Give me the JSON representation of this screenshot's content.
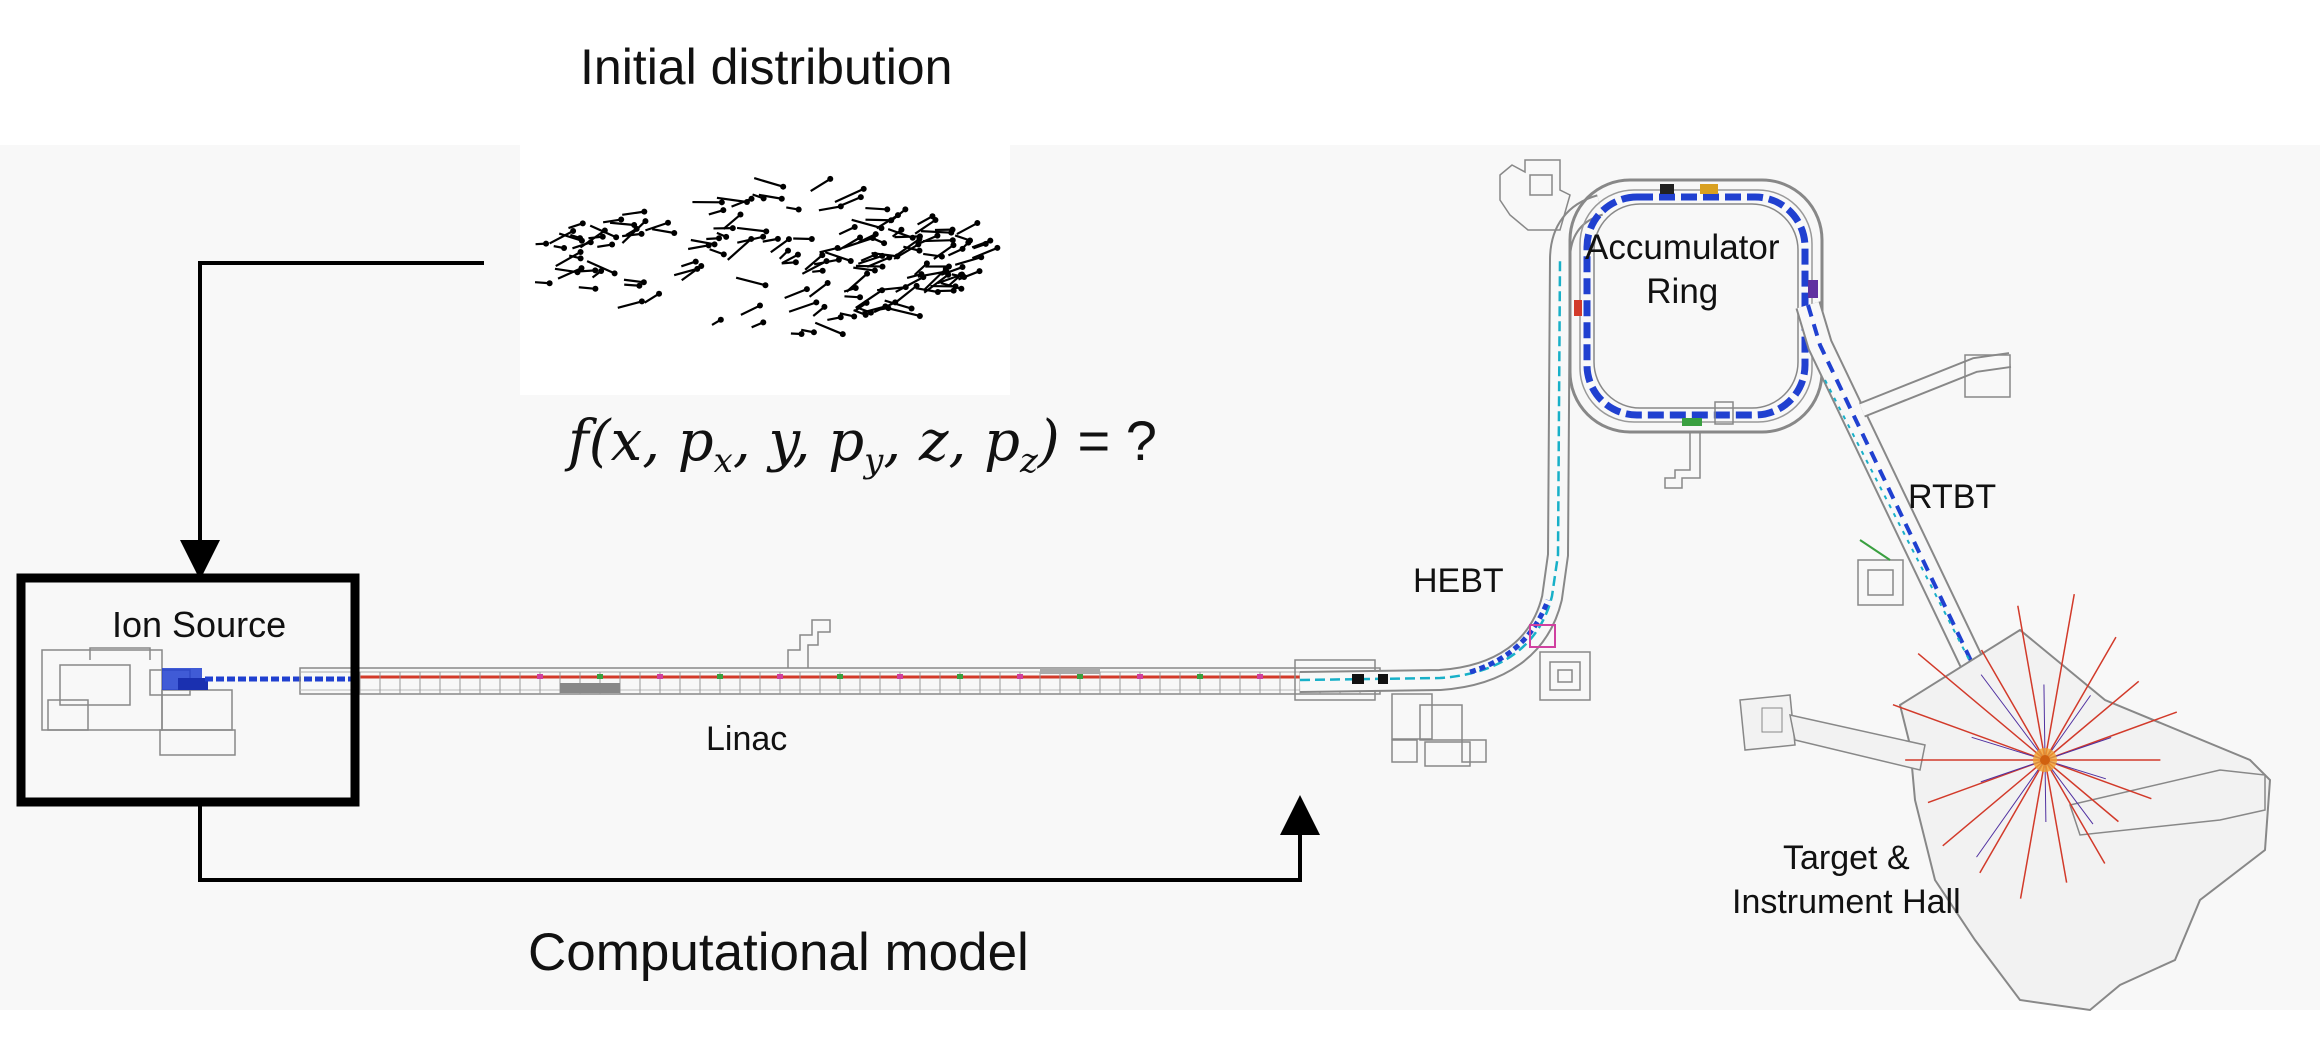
{
  "titles": {
    "initial": "Initial distribution",
    "model": "Computational model"
  },
  "formula": {
    "func": "f",
    "open": "(",
    "vars": [
      {
        "base": "x",
        "sub": ""
      },
      {
        "base": "p",
        "sub": "x"
      },
      {
        "base": "y",
        "sub": ""
      },
      {
        "base": "p",
        "sub": "y"
      },
      {
        "base": "z",
        "sub": ""
      },
      {
        "base": "p",
        "sub": "z"
      }
    ],
    "close": ")",
    "rhs": "= ?"
  },
  "sections": {
    "ion_source": "Ion Source",
    "linac": "Linac",
    "hebt": "HEBT",
    "ring_line1": "Accumulator",
    "ring_line2": "Ring",
    "rtbt": "RTBT",
    "target_line1": "Target &",
    "target_line2": "Instrument Hall"
  },
  "colors": {
    "line": "#000000",
    "beam_red": "#d23a2a",
    "beam_blue": "#2040d0",
    "beam_cyan": "#18b0c8",
    "beam_green": "#3aa040",
    "beam_pink": "#d040a0",
    "outline": "#888888"
  }
}
